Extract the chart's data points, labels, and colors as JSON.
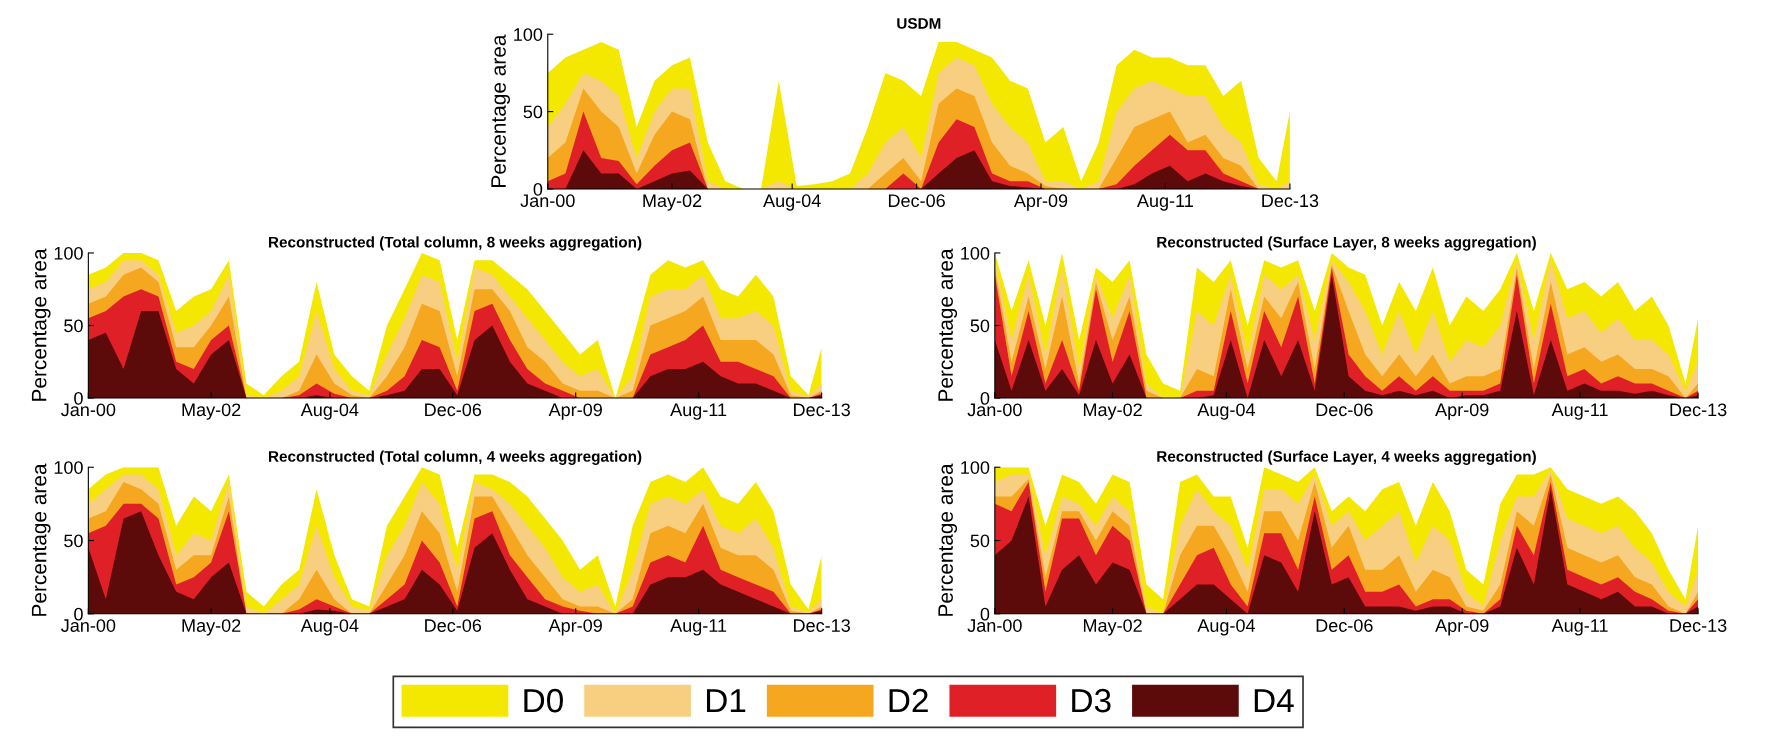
{
  "chart_data": [
    {
      "type": "area",
      "title": "USDM",
      "ylabel": "Percentage area",
      "legend": "bottom",
      "x": [
        "2000-01",
        "2000-05",
        "2000-09",
        "2001-01",
        "2001-05",
        "2001-09",
        "2002-01",
        "2002-05",
        "2002-09",
        "2003-01",
        "2003-05",
        "2003-09",
        "2004-01",
        "2004-05",
        "2004-09",
        "2005-01",
        "2005-05",
        "2005-09",
        "2006-01",
        "2006-05",
        "2006-09",
        "2007-01",
        "2007-05",
        "2007-09",
        "2008-01",
        "2008-05",
        "2008-09",
        "2009-01",
        "2009-05",
        "2009-09",
        "2010-01",
        "2010-05",
        "2010-09",
        "2011-01",
        "2011-05",
        "2011-09",
        "2012-01",
        "2012-05",
        "2012-09",
        "2013-01",
        "2013-05",
        "2013-09",
        "2013-12"
      ],
      "xlim": [
        "2000-01",
        "2013-12"
      ],
      "xticks": [
        {
          "value": "2000-01",
          "label": "Jan-00"
        },
        {
          "value": "2002-05",
          "label": "May-02"
        },
        {
          "value": "2004-08",
          "label": "Aug-04"
        },
        {
          "value": "2006-12",
          "label": "Dec-06"
        },
        {
          "value": "2009-04",
          "label": "Apr-09"
        },
        {
          "value": "2011-08",
          "label": "Aug-11"
        },
        {
          "value": "2013-12",
          "label": "Dec-13"
        }
      ],
      "ylim": [
        0,
        100
      ],
      "yticks": [
        0,
        50,
        100
      ],
      "series": [
        {
          "name": "D0",
          "color": "#f5e800",
          "values": [
            75,
            85,
            90,
            95,
            90,
            40,
            70,
            80,
            85,
            30,
            5,
            0,
            0,
            70,
            2,
            3,
            5,
            10,
            40,
            75,
            70,
            60,
            95,
            95,
            90,
            85,
            70,
            65,
            30,
            40,
            5,
            30,
            80,
            90,
            85,
            85,
            80,
            80,
            60,
            70,
            20,
            5,
            50
          ]
        },
        {
          "name": "D1",
          "color": "#f8cf80",
          "values": [
            40,
            55,
            75,
            70,
            60,
            20,
            50,
            65,
            65,
            5,
            0,
            0,
            0,
            5,
            0,
            0,
            0,
            0,
            10,
            30,
            40,
            20,
            75,
            85,
            80,
            55,
            40,
            30,
            5,
            5,
            0,
            5,
            50,
            65,
            70,
            65,
            60,
            60,
            40,
            30,
            3,
            0,
            5
          ]
        },
        {
          "name": "D2",
          "color": "#f5a71f",
          "values": [
            20,
            30,
            65,
            50,
            40,
            10,
            35,
            50,
            45,
            0,
            0,
            0,
            0,
            0,
            0,
            0,
            0,
            0,
            0,
            10,
            20,
            5,
            55,
            65,
            60,
            30,
            15,
            10,
            2,
            0,
            0,
            0,
            20,
            40,
            45,
            50,
            30,
            35,
            20,
            15,
            0,
            0,
            0
          ]
        },
        {
          "name": "D3",
          "color": "#e02027",
          "values": [
            5,
            10,
            50,
            20,
            18,
            3,
            15,
            25,
            30,
            0,
            0,
            0,
            0,
            0,
            0,
            0,
            0,
            0,
            0,
            0,
            10,
            0,
            30,
            45,
            40,
            10,
            5,
            5,
            0,
            0,
            0,
            0,
            3,
            15,
            25,
            35,
            25,
            25,
            10,
            5,
            0,
            0,
            0
          ]
        },
        {
          "name": "D4",
          "color": "#5c0a0a",
          "values": [
            0,
            0,
            25,
            10,
            10,
            0,
            5,
            10,
            12,
            0,
            0,
            0,
            0,
            0,
            0,
            0,
            0,
            0,
            0,
            0,
            0,
            0,
            10,
            20,
            25,
            5,
            2,
            1,
            0,
            0,
            0,
            0,
            0,
            3,
            10,
            15,
            5,
            10,
            5,
            2,
            0,
            0,
            0
          ]
        }
      ]
    },
    {
      "type": "area",
      "title": "Reconstructed (Total column, 8 weeks aggregation)",
      "ylabel": "Percentage area",
      "legend": "bottom",
      "x": [
        "2000-01",
        "2000-05",
        "2000-09",
        "2001-01",
        "2001-05",
        "2001-09",
        "2002-01",
        "2002-05",
        "2002-09",
        "2003-01",
        "2003-05",
        "2003-09",
        "2004-01",
        "2004-05",
        "2004-09",
        "2005-01",
        "2005-05",
        "2005-09",
        "2006-01",
        "2006-05",
        "2006-09",
        "2007-01",
        "2007-05",
        "2007-09",
        "2008-01",
        "2008-05",
        "2008-09",
        "2009-01",
        "2009-05",
        "2009-09",
        "2010-01",
        "2010-05",
        "2010-09",
        "2011-01",
        "2011-05",
        "2011-09",
        "2012-01",
        "2012-05",
        "2012-09",
        "2013-01",
        "2013-05",
        "2013-09",
        "2013-12"
      ],
      "xlim": [
        "2000-01",
        "2013-12"
      ],
      "xticks": [
        {
          "value": "2000-01",
          "label": "Jan-00"
        },
        {
          "value": "2002-05",
          "label": "May-02"
        },
        {
          "value": "2004-08",
          "label": "Aug-04"
        },
        {
          "value": "2006-12",
          "label": "Dec-06"
        },
        {
          "value": "2009-04",
          "label": "Apr-09"
        },
        {
          "value": "2011-08",
          "label": "Aug-11"
        },
        {
          "value": "2013-12",
          "label": "Dec-13"
        }
      ],
      "ylim": [
        0,
        100
      ],
      "yticks": [
        0,
        50,
        100
      ],
      "series": [
        {
          "name": "D0",
          "color": "#f5e800",
          "values": [
            85,
            90,
            100,
            100,
            95,
            60,
            70,
            75,
            95,
            10,
            2,
            15,
            25,
            80,
            30,
            15,
            5,
            50,
            75,
            100,
            95,
            40,
            95,
            95,
            85,
            75,
            60,
            45,
            30,
            40,
            0,
            40,
            85,
            95,
            90,
            95,
            75,
            70,
            85,
            70,
            15,
            2,
            35
          ]
        },
        {
          "name": "D1",
          "color": "#f8cf80",
          "values": [
            75,
            80,
            95,
            95,
            85,
            45,
            50,
            60,
            85,
            2,
            0,
            5,
            15,
            60,
            20,
            5,
            2,
            30,
            55,
            85,
            80,
            25,
            90,
            85,
            70,
            55,
            40,
            25,
            15,
            20,
            0,
            15,
            70,
            75,
            75,
            85,
            55,
            55,
            60,
            50,
            5,
            1,
            10
          ]
        },
        {
          "name": "D2",
          "color": "#f5a71f",
          "values": [
            65,
            70,
            85,
            90,
            80,
            35,
            35,
            50,
            70,
            0,
            0,
            0,
            5,
            30,
            10,
            2,
            0,
            15,
            35,
            65,
            60,
            15,
            75,
            75,
            60,
            35,
            25,
            10,
            5,
            5,
            0,
            5,
            50,
            55,
            60,
            70,
            40,
            40,
            40,
            30,
            2,
            0,
            5
          ]
        },
        {
          "name": "D3",
          "color": "#e02027",
          "values": [
            55,
            60,
            70,
            75,
            70,
            25,
            20,
            40,
            50,
            0,
            0,
            0,
            2,
            10,
            3,
            0,
            0,
            5,
            15,
            40,
            35,
            5,
            60,
            65,
            40,
            20,
            10,
            5,
            0,
            0,
            0,
            0,
            30,
            35,
            40,
            50,
            25,
            25,
            20,
            15,
            0,
            0,
            3
          ]
        },
        {
          "name": "D4",
          "color": "#5c0a0a",
          "values": [
            40,
            45,
            20,
            60,
            60,
            20,
            10,
            30,
            40,
            0,
            0,
            0,
            0,
            2,
            0,
            0,
            0,
            2,
            5,
            20,
            20,
            2,
            40,
            50,
            25,
            10,
            5,
            0,
            0,
            0,
            0,
            0,
            15,
            20,
            20,
            25,
            15,
            10,
            10,
            5,
            0,
            0,
            2
          ]
        }
      ]
    },
    {
      "type": "area",
      "title": "Reconstructed (Surface Layer, 8 weeks aggregation)",
      "ylabel": "Percentage area",
      "legend": "bottom",
      "x": [
        "2000-01",
        "2000-05",
        "2000-09",
        "2001-01",
        "2001-05",
        "2001-09",
        "2002-01",
        "2002-05",
        "2002-09",
        "2003-01",
        "2003-05",
        "2003-09",
        "2004-01",
        "2004-05",
        "2004-09",
        "2005-01",
        "2005-05",
        "2005-09",
        "2006-01",
        "2006-05",
        "2006-09",
        "2007-01",
        "2007-05",
        "2007-09",
        "2008-01",
        "2008-05",
        "2008-09",
        "2009-01",
        "2009-05",
        "2009-09",
        "2010-01",
        "2010-05",
        "2010-09",
        "2011-01",
        "2011-05",
        "2011-09",
        "2012-01",
        "2012-05",
        "2012-09",
        "2013-01",
        "2013-05",
        "2013-09",
        "2013-12"
      ],
      "xlim": [
        "2000-01",
        "2013-12"
      ],
      "xticks": [
        {
          "value": "2000-01",
          "label": "Jan-00"
        },
        {
          "value": "2002-05",
          "label": "May-02"
        },
        {
          "value": "2004-08",
          "label": "Aug-04"
        },
        {
          "value": "2006-12",
          "label": "Dec-06"
        },
        {
          "value": "2009-04",
          "label": "Apr-09"
        },
        {
          "value": "2011-08",
          "label": "Aug-11"
        },
        {
          "value": "2013-12",
          "label": "Dec-13"
        }
      ],
      "ylim": [
        0,
        100
      ],
      "yticks": [
        0,
        50,
        100
      ],
      "series": [
        {
          "name": "D0",
          "color": "#f5e800",
          "values": [
            100,
            60,
            95,
            50,
            100,
            40,
            90,
            80,
            95,
            30,
            10,
            5,
            90,
            80,
            95,
            50,
            95,
            90,
            95,
            60,
            100,
            90,
            85,
            50,
            80,
            60,
            90,
            50,
            70,
            60,
            75,
            100,
            60,
            100,
            75,
            80,
            70,
            80,
            60,
            70,
            50,
            10,
            55
          ]
        },
        {
          "name": "D1",
          "color": "#f8cf80",
          "values": [
            95,
            40,
            85,
            30,
            90,
            20,
            85,
            55,
            85,
            10,
            0,
            0,
            60,
            50,
            85,
            30,
            85,
            75,
            85,
            40,
            95,
            80,
            60,
            30,
            60,
            30,
            60,
            25,
            40,
            35,
            50,
            95,
            40,
            95,
            55,
            60,
            45,
            55,
            40,
            40,
            30,
            5,
            25
          ]
        },
        {
          "name": "D2",
          "color": "#f5a71f",
          "values": [
            90,
            25,
            70,
            20,
            70,
            10,
            80,
            40,
            70,
            5,
            0,
            0,
            20,
            15,
            75,
            20,
            70,
            55,
            80,
            20,
            92,
            60,
            30,
            15,
            30,
            15,
            30,
            10,
            15,
            15,
            20,
            90,
            20,
            80,
            30,
            35,
            25,
            30,
            20,
            20,
            15,
            0,
            10
          ]
        },
        {
          "name": "D3",
          "color": "#e02027",
          "values": [
            85,
            15,
            60,
            10,
            40,
            5,
            75,
            25,
            60,
            0,
            0,
            0,
            5,
            5,
            60,
            10,
            60,
            35,
            70,
            10,
            90,
            30,
            15,
            5,
            15,
            5,
            15,
            5,
            5,
            5,
            10,
            85,
            10,
            65,
            15,
            20,
            10,
            15,
            10,
            10,
            5,
            0,
            5
          ]
        },
        {
          "name": "D4",
          "color": "#5c0a0a",
          "values": [
            40,
            5,
            40,
            5,
            20,
            2,
            40,
            10,
            30,
            0,
            0,
            0,
            0,
            2,
            40,
            0,
            40,
            15,
            40,
            5,
            85,
            15,
            5,
            2,
            5,
            2,
            5,
            0,
            2,
            2,
            5,
            60,
            2,
            40,
            5,
            10,
            5,
            5,
            3,
            5,
            2,
            0,
            2
          ]
        }
      ]
    },
    {
      "type": "area",
      "title": "Reconstructed (Total column, 4 weeks aggregation)",
      "ylabel": "Percentage area",
      "legend": "bottom",
      "x": [
        "2000-01",
        "2000-05",
        "2000-09",
        "2001-01",
        "2001-05",
        "2001-09",
        "2002-01",
        "2002-05",
        "2002-09",
        "2003-01",
        "2003-05",
        "2003-09",
        "2004-01",
        "2004-05",
        "2004-09",
        "2005-01",
        "2005-05",
        "2005-09",
        "2006-01",
        "2006-05",
        "2006-09",
        "2007-01",
        "2007-05",
        "2007-09",
        "2008-01",
        "2008-05",
        "2008-09",
        "2009-01",
        "2009-05",
        "2009-09",
        "2010-01",
        "2010-05",
        "2010-09",
        "2011-01",
        "2011-05",
        "2011-09",
        "2012-01",
        "2012-05",
        "2012-09",
        "2013-01",
        "2013-05",
        "2013-09",
        "2013-12"
      ],
      "xlim": [
        "2000-01",
        "2013-12"
      ],
      "xticks": [
        {
          "value": "2000-01",
          "label": "Jan-00"
        },
        {
          "value": "2002-05",
          "label": "May-02"
        },
        {
          "value": "2004-08",
          "label": "Aug-04"
        },
        {
          "value": "2006-12",
          "label": "Dec-06"
        },
        {
          "value": "2009-04",
          "label": "Apr-09"
        },
        {
          "value": "2011-08",
          "label": "Aug-11"
        },
        {
          "value": "2013-12",
          "label": "Dec-13"
        }
      ],
      "ylim": [
        0,
        100
      ],
      "yticks": [
        0,
        50,
        100
      ],
      "series": [
        {
          "name": "D0",
          "color": "#f5e800",
          "values": [
            85,
            95,
            100,
            100,
            100,
            60,
            80,
            70,
            95,
            15,
            5,
            20,
            30,
            85,
            40,
            10,
            5,
            60,
            80,
            100,
            95,
            45,
            95,
            95,
            90,
            80,
            65,
            50,
            30,
            40,
            5,
            60,
            90,
            95,
            90,
            100,
            80,
            75,
            90,
            70,
            20,
            3,
            40
          ]
        },
        {
          "name": "D1",
          "color": "#f8cf80",
          "values": [
            75,
            85,
            95,
            95,
            85,
            40,
            55,
            50,
            90,
            5,
            0,
            10,
            20,
            60,
            25,
            5,
            2,
            40,
            60,
            90,
            75,
            30,
            90,
            85,
            75,
            60,
            45,
            25,
            15,
            20,
            0,
            30,
            75,
            80,
            75,
            85,
            60,
            55,
            65,
            45,
            5,
            1,
            10
          ]
        },
        {
          "name": "D2",
          "color": "#f5a71f",
          "values": [
            65,
            70,
            90,
            85,
            75,
            30,
            40,
            40,
            80,
            0,
            0,
            0,
            10,
            30,
            10,
            0,
            0,
            20,
            40,
            70,
            55,
            15,
            80,
            80,
            60,
            40,
            25,
            10,
            5,
            5,
            0,
            10,
            55,
            60,
            55,
            75,
            45,
            40,
            40,
            30,
            2,
            0,
            5
          ]
        },
        {
          "name": "D3",
          "color": "#e02027",
          "values": [
            55,
            60,
            75,
            75,
            65,
            20,
            25,
            35,
            70,
            0,
            0,
            0,
            3,
            10,
            5,
            0,
            0,
            10,
            20,
            50,
            35,
            5,
            65,
            70,
            40,
            25,
            10,
            5,
            2,
            0,
            0,
            5,
            35,
            40,
            35,
            60,
            30,
            25,
            20,
            15,
            0,
            0,
            3
          ]
        },
        {
          "name": "D4",
          "color": "#5c0a0a",
          "values": [
            45,
            10,
            65,
            70,
            40,
            15,
            10,
            25,
            35,
            0,
            0,
            0,
            0,
            3,
            2,
            0,
            0,
            5,
            10,
            30,
            20,
            2,
            45,
            55,
            30,
            10,
            5,
            0,
            0,
            0,
            0,
            0,
            20,
            25,
            25,
            30,
            20,
            15,
            10,
            5,
            0,
            0,
            2
          ]
        }
      ]
    },
    {
      "type": "area",
      "title": "Reconstructed (Surface Layer, 4 weeks aggregation)",
      "ylabel": "Percentage area",
      "legend": "bottom",
      "x": [
        "2000-01",
        "2000-05",
        "2000-09",
        "2001-01",
        "2001-05",
        "2001-09",
        "2002-01",
        "2002-05",
        "2002-09",
        "2003-01",
        "2003-05",
        "2003-09",
        "2004-01",
        "2004-05",
        "2004-09",
        "2005-01",
        "2005-05",
        "2005-09",
        "2006-01",
        "2006-05",
        "2006-09",
        "2007-01",
        "2007-05",
        "2007-09",
        "2008-01",
        "2008-05",
        "2008-09",
        "2009-01",
        "2009-05",
        "2009-09",
        "2010-01",
        "2010-05",
        "2010-09",
        "2011-01",
        "2011-05",
        "2011-09",
        "2012-01",
        "2012-05",
        "2012-09",
        "2013-01",
        "2013-05",
        "2013-09",
        "2013-12"
      ],
      "xlim": [
        "2000-01",
        "2013-12"
      ],
      "xticks": [
        {
          "value": "2000-01",
          "label": "Jan-00"
        },
        {
          "value": "2002-05",
          "label": "May-02"
        },
        {
          "value": "2004-08",
          "label": "Aug-04"
        },
        {
          "value": "2006-12",
          "label": "Dec-06"
        },
        {
          "value": "2009-04",
          "label": "Apr-09"
        },
        {
          "value": "2011-08",
          "label": "Aug-11"
        },
        {
          "value": "2013-12",
          "label": "Dec-13"
        }
      ],
      "ylim": [
        0,
        100
      ],
      "yticks": [
        0,
        50,
        100
      ],
      "series": [
        {
          "name": "D0",
          "color": "#f5e800",
          "values": [
            100,
            100,
            100,
            60,
            95,
            90,
            75,
            95,
            90,
            20,
            10,
            90,
            95,
            80,
            80,
            45,
            100,
            95,
            90,
            100,
            70,
            80,
            70,
            85,
            90,
            60,
            90,
            70,
            30,
            20,
            75,
            95,
            95,
            100,
            85,
            80,
            75,
            80,
            70,
            55,
            30,
            10,
            60
          ]
        },
        {
          "name": "D1",
          "color": "#f8cf80",
          "values": [
            90,
            95,
            95,
            40,
            80,
            75,
            60,
            80,
            70,
            5,
            0,
            60,
            85,
            70,
            60,
            30,
            85,
            85,
            75,
            95,
            60,
            70,
            50,
            60,
            70,
            35,
            60,
            50,
            15,
            5,
            50,
            80,
            80,
            98,
            65,
            60,
            55,
            60,
            45,
            35,
            15,
            5,
            30
          ]
        },
        {
          "name": "D2",
          "color": "#f5a71f",
          "values": [
            80,
            80,
            92,
            25,
            70,
            70,
            50,
            70,
            60,
            0,
            0,
            40,
            60,
            60,
            40,
            15,
            70,
            70,
            50,
            90,
            45,
            60,
            30,
            30,
            40,
            15,
            30,
            25,
            5,
            2,
            20,
            70,
            60,
            95,
            45,
            40,
            35,
            40,
            25,
            20,
            5,
            0,
            15
          ]
        },
        {
          "name": "D3",
          "color": "#e02027",
          "values": [
            75,
            70,
            90,
            15,
            65,
            65,
            40,
            60,
            50,
            0,
            0,
            20,
            40,
            45,
            20,
            5,
            55,
            55,
            30,
            80,
            30,
            40,
            15,
            15,
            20,
            5,
            10,
            10,
            2,
            0,
            10,
            60,
            40,
            90,
            30,
            25,
            20,
            25,
            15,
            10,
            2,
            0,
            10
          ]
        },
        {
          "name": "D4",
          "color": "#5c0a0a",
          "values": [
            40,
            50,
            80,
            5,
            30,
            40,
            20,
            35,
            30,
            0,
            0,
            10,
            20,
            20,
            10,
            0,
            40,
            35,
            15,
            70,
            20,
            25,
            5,
            5,
            5,
            2,
            5,
            5,
            0,
            0,
            5,
            45,
            20,
            85,
            20,
            15,
            10,
            15,
            5,
            5,
            0,
            0,
            5
          ]
        }
      ]
    }
  ]
}
